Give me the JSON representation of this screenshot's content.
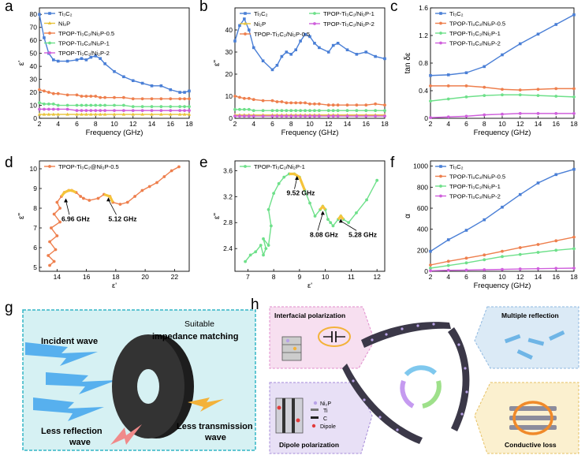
{
  "panels": {
    "a": "a",
    "b": "b",
    "c": "c",
    "d": "d",
    "e": "e",
    "f": "f",
    "g": "g",
    "h": "h"
  },
  "schematic_g": {
    "incident": "Incident wave",
    "suitable": "Suitable",
    "impedance": "impedance matching",
    "less_reflection_1": "Less reflection",
    "less_reflection_2": "wave",
    "less_transmission_1": "Less transmission",
    "less_transmission_2": "wave",
    "colors": {
      "background": "#d6f1f3",
      "border": "#34b6c6",
      "wave": "#57b0ee",
      "ring": "#2b2b2b",
      "reflect": "#f08a8a",
      "transmit": "#f3b23a"
    }
  },
  "schematic_h": {
    "interfacial": "Interfacial polarization",
    "multiple": "Multiple reflection",
    "dipole": "Dipole polarization",
    "conductive": "Conductive loss",
    "legend_ni2p": "Ni₂P",
    "legend_ti": "Ti",
    "legend_c": "C",
    "legend_dipole": "Dipole",
    "colors": {
      "pink": "#f7dff0",
      "blue": "#dbeaf6",
      "lavender": "#e8e0f6",
      "yellow": "#fbf0cf",
      "flake": "#3b3848",
      "dots": "#b9a3e8"
    }
  },
  "chart_data": [
    {
      "id": "a",
      "type": "line",
      "xlabel": "Frequency (GHz)",
      "ylabel": "ε'",
      "xlim": [
        2,
        18
      ],
      "ylim": [
        0,
        85
      ],
      "xticks": [
        2,
        4,
        6,
        8,
        10,
        12,
        14,
        16,
        18
      ],
      "yticks": [
        0,
        10,
        20,
        30,
        40,
        50,
        60,
        70,
        80
      ],
      "x": [
        2,
        2.5,
        3,
        3.5,
        4,
        5,
        6,
        6.5,
        7,
        7.5,
        8,
        8.5,
        9,
        10,
        11,
        12,
        13,
        14,
        15,
        16,
        17,
        17.5,
        18
      ],
      "series": [
        {
          "name": "Ti₃C₂",
          "color": "#4a7fd6",
          "marker": "square",
          "values": [
            80,
            62,
            50,
            45,
            44,
            44,
            45,
            46,
            45,
            47,
            48,
            46,
            42,
            36,
            32,
            29,
            27,
            25,
            25,
            22,
            20,
            20,
            21
          ]
        },
        {
          "name": "Ni₂P",
          "color": "#e8c237",
          "marker": "triangle",
          "values": [
            3,
            3,
            3,
            3,
            3,
            3,
            3,
            3,
            3,
            3,
            3,
            3,
            3,
            3,
            3,
            3,
            3,
            3,
            3,
            3,
            3,
            3,
            3
          ]
        },
        {
          "name": "TPOP-Ti₃C₂/Ni₂P-0.5",
          "color": "#ee7f4d",
          "marker": "circle",
          "values": [
            22,
            21,
            20,
            19,
            19,
            18,
            18,
            17,
            17,
            17,
            17,
            16,
            16,
            16,
            16,
            15,
            15,
            15,
            15,
            15,
            15,
            15,
            15
          ]
        },
        {
          "name": "TPOP-Ti₃C₂/Ni₂P-1",
          "color": "#6ee08a",
          "marker": "circle",
          "values": [
            12,
            11,
            11,
            11,
            10,
            10,
            10,
            10,
            10,
            10,
            10,
            10,
            10,
            10,
            10,
            9,
            9,
            9,
            9,
            9,
            9,
            9,
            9
          ]
        },
        {
          "name": "TPOP-Ti₃C₂/Ni₂P-2",
          "color": "#cf5fdc",
          "marker": "circle",
          "values": [
            7,
            7,
            7,
            7,
            7,
            7,
            6,
            6,
            6,
            6,
            6,
            6,
            6,
            6,
            6,
            6,
            6,
            6,
            6,
            6,
            6,
            6,
            6
          ]
        }
      ]
    },
    {
      "id": "b",
      "type": "line",
      "xlabel": "Frequency (GHz)",
      "ylabel": "ε\"",
      "xlim": [
        2,
        18
      ],
      "ylim": [
        0,
        50
      ],
      "xticks": [
        2,
        4,
        6,
        8,
        10,
        12,
        14,
        16,
        18
      ],
      "yticks": [
        0,
        10,
        20,
        30,
        40
      ],
      "x": [
        2,
        2.5,
        3,
        3.5,
        4,
        5,
        6,
        6.5,
        7,
        7.5,
        8,
        8.5,
        9,
        9.5,
        10,
        10.5,
        11,
        12,
        12.5,
        13,
        14,
        15,
        16,
        17,
        18
      ],
      "series": [
        {
          "name": "Ti₃C₂",
          "color": "#4a7fd6",
          "marker": "square",
          "values": [
            35,
            42,
            45,
            40,
            32,
            26,
            22,
            24,
            28,
            30,
            29,
            31,
            35,
            38,
            37,
            34,
            32,
            30,
            33,
            34,
            31,
            29,
            30,
            28,
            27
          ]
        },
        {
          "name": "Ni₂P",
          "color": "#e8c237",
          "marker": "triangle",
          "values": [
            1.5,
            1.5,
            1.5,
            1.5,
            1.5,
            1.5,
            1.5,
            1.5,
            1.5,
            1.5,
            1.5,
            1.5,
            1.5,
            1.5,
            1.5,
            1.5,
            1.5,
            1.5,
            1.5,
            1.5,
            1.5,
            1.5,
            1.5,
            1.5,
            1.5
          ]
        },
        {
          "name": "TPOP-Ti₃C₂/Ni₂P-0.5",
          "color": "#ee7f4d",
          "marker": "circle",
          "values": [
            10,
            9.5,
            9,
            9,
            8.5,
            8,
            8,
            7.5,
            7.5,
            7,
            7,
            7,
            7,
            7,
            6.5,
            6.5,
            6.5,
            6,
            6,
            6,
            6,
            6,
            6,
            6.5,
            6
          ]
        },
        {
          "name": "TPOP-Ti₃C₂/Ni₂P-1",
          "color": "#6ee08a",
          "marker": "circle",
          "values": [
            4,
            4,
            4,
            4,
            3.5,
            3.5,
            3.5,
            3.5,
            3.5,
            3.5,
            3.5,
            3.5,
            3.5,
            3.5,
            3.5,
            3.5,
            3.5,
            3.5,
            3.5,
            3.5,
            3.5,
            3.5,
            3.5,
            3.5,
            3.5
          ]
        },
        {
          "name": "TPOP-Ti₃C₂/Ni₂P-2",
          "color": "#cf5fdc",
          "marker": "circle",
          "values": [
            1,
            1,
            1,
            1,
            1,
            1,
            1,
            1,
            1,
            1,
            1,
            1,
            1,
            1,
            1,
            1,
            1,
            1,
            1,
            1,
            1,
            1,
            1,
            1,
            1
          ]
        }
      ]
    },
    {
      "id": "c",
      "type": "line",
      "xlabel": "Frequency (GHz)",
      "ylabel": "tan δε",
      "xlim": [
        2,
        18
      ],
      "ylim": [
        0,
        1.6
      ],
      "xticks": [
        2,
        4,
        6,
        8,
        10,
        12,
        14,
        16,
        18
      ],
      "yticks": [
        0.0,
        0.4,
        0.8,
        1.2,
        1.6
      ],
      "x": [
        2,
        4,
        6,
        8,
        10,
        12,
        14,
        16,
        18
      ],
      "series": [
        {
          "name": "Ti₃C₂",
          "color": "#4a7fd6",
          "marker": "square",
          "values": [
            0.62,
            0.63,
            0.66,
            0.75,
            0.92,
            1.08,
            1.22,
            1.36,
            1.5
          ]
        },
        {
          "name": "TPOP-Ti₃C₂/Ni₂P-0.5",
          "color": "#ee7f4d",
          "marker": "circle",
          "values": [
            0.47,
            0.47,
            0.47,
            0.45,
            0.42,
            0.41,
            0.42,
            0.43,
            0.43
          ]
        },
        {
          "name": "TPOP-Ti₃C₂/Ni₂P-1",
          "color": "#6ee08a",
          "marker": "circle",
          "values": [
            0.25,
            0.28,
            0.31,
            0.33,
            0.34,
            0.34,
            0.33,
            0.32,
            0.31
          ]
        },
        {
          "name": "TPOP-Ti₃C₂/Ni₂P-2",
          "color": "#cf5fdc",
          "marker": "circle",
          "values": [
            0.01,
            0.02,
            0.03,
            0.05,
            0.06,
            0.07,
            0.07,
            0.07,
            0.07
          ]
        }
      ]
    },
    {
      "id": "d",
      "type": "line",
      "title": "",
      "xlabel": "ε'",
      "ylabel": "ε\"",
      "xlim": [
        12.8,
        23
      ],
      "ylim": [
        4.8,
        10.4
      ],
      "xticks": [
        14,
        16,
        18,
        20,
        22
      ],
      "yticks": [
        5,
        6,
        7,
        8,
        9,
        10
      ],
      "series": [
        {
          "name": "TPOP-Ti₃C₂@Ni₂P-0.5",
          "color": "#ee7f4d",
          "marker": "circle",
          "x": [
            13.5,
            13.8,
            13.4,
            13.9,
            13.5,
            14.0,
            13.6,
            14.2,
            13.8,
            14.2,
            14.0,
            14.3,
            14.5,
            14.8,
            15.0,
            15.3,
            15.6,
            15.8,
            16.2,
            16.8,
            17.2,
            17.6,
            17.8,
            18.3,
            18.8,
            19.3,
            19.8,
            20.3,
            20.8,
            21.3,
            21.8,
            22.3
          ],
          "y": [
            5.1,
            5.3,
            5.6,
            5.9,
            6.3,
            6.6,
            7.0,
            7.3,
            7.7,
            8.0,
            8.3,
            8.6,
            8.8,
            8.9,
            8.9,
            8.8,
            8.6,
            8.5,
            8.4,
            8.5,
            8.7,
            8.6,
            8.3,
            8.2,
            8.3,
            8.6,
            8.9,
            9.1,
            9.3,
            9.6,
            9.9,
            10.1
          ]
        },
        {
          "name": "",
          "color": "#f5c43a",
          "marker": "none",
          "x": [
            14.3,
            14.5,
            14.8,
            15.0,
            15.3
          ],
          "y": [
            8.6,
            8.8,
            8.9,
            8.9,
            8.8
          ]
        },
        {
          "name": "",
          "color": "#f5c43a",
          "marker": "none",
          "x": [
            17.2,
            17.6,
            17.8
          ],
          "y": [
            8.7,
            8.6,
            8.3
          ]
        }
      ],
      "annotations": [
        {
          "text": "6.96 GHz",
          "x": 14.3,
          "y": 7.35,
          "point_x": 14.6,
          "point_y": 8.5
        },
        {
          "text": "5.12 GHz",
          "x": 17.5,
          "y": 7.35,
          "point_x": 17.5,
          "point_y": 8.55
        }
      ]
    },
    {
      "id": "e",
      "type": "line",
      "xlabel": "ε'",
      "ylabel": "ε\"",
      "xlim": [
        6.5,
        12.3
      ],
      "ylim": [
        2.05,
        3.75
      ],
      "xticks": [
        7,
        8,
        9,
        10,
        11,
        12
      ],
      "yticks": [
        2.4,
        2.8,
        3.2,
        3.6
      ],
      "series": [
        {
          "name": "TPOP-Ti₃C₂/Ni₂P-1",
          "color": "#6ee08a",
          "marker": "circle",
          "x": [
            6.9,
            7.1,
            7.3,
            7.5,
            7.6,
            7.7,
            7.6,
            7.8,
            7.9,
            7.8,
            8.0,
            8.2,
            8.4,
            8.6,
            8.8,
            9.0,
            9.2,
            9.4,
            9.6,
            9.8,
            9.9,
            10.0,
            10.1,
            10.2,
            10.3,
            10.5,
            10.6,
            10.7,
            10.9,
            11.2,
            11.6,
            12.0
          ],
          "y": [
            2.2,
            2.3,
            2.35,
            2.45,
            2.3,
            2.4,
            2.55,
            2.45,
            2.75,
            3.0,
            3.25,
            3.4,
            3.5,
            3.55,
            3.55,
            3.5,
            3.3,
            3.1,
            2.9,
            3.0,
            3.05,
            3.0,
            2.85,
            2.8,
            2.75,
            2.85,
            2.9,
            2.85,
            2.8,
            2.95,
            3.15,
            3.45
          ]
        },
        {
          "name": "",
          "color": "#f5c43a",
          "marker": "none",
          "x": [
            8.6,
            8.8,
            9.0,
            9.2
          ],
          "y": [
            3.55,
            3.55,
            3.5,
            3.3
          ]
        },
        {
          "name": "",
          "color": "#f5c43a",
          "marker": "none",
          "x": [
            9.8,
            9.9,
            10.0
          ],
          "y": [
            3.0,
            3.05,
            3.0
          ]
        },
        {
          "name": "",
          "color": "#f5c43a",
          "marker": "none",
          "x": [
            10.5,
            10.6,
            10.7
          ],
          "y": [
            2.85,
            2.9,
            2.85
          ]
        }
      ],
      "annotations": [
        {
          "text": "9.52 GHz",
          "x": 8.5,
          "y": 3.22,
          "point_x": 8.9,
          "point_y": 3.52
        },
        {
          "text": "8.08 GHz",
          "x": 9.4,
          "y": 2.58,
          "point_x": 9.9,
          "point_y": 2.98
        },
        {
          "text": "5.28 GHz",
          "x": 10.9,
          "y": 2.58,
          "point_x": 10.6,
          "point_y": 2.86
        }
      ]
    },
    {
      "id": "f",
      "type": "line",
      "xlabel": "Frequency (GHz)",
      "ylabel": "α",
      "xlim": [
        2,
        18
      ],
      "ylim": [
        0,
        1050
      ],
      "xticks": [
        2,
        4,
        6,
        8,
        10,
        12,
        14,
        16,
        18
      ],
      "yticks": [
        0,
        200,
        400,
        600,
        800,
        1000
      ],
      "x": [
        2,
        4,
        6,
        8,
        10,
        12,
        14,
        16,
        18
      ],
      "series": [
        {
          "name": "Ti₃C₂",
          "color": "#4a7fd6",
          "marker": "square",
          "values": [
            190,
            300,
            390,
            490,
            610,
            730,
            840,
            920,
            970
          ]
        },
        {
          "name": "TPOP-Ti₃C₂/Ni₂P-0.5",
          "color": "#ee7f4d",
          "marker": "circle",
          "values": [
            60,
            95,
            125,
            155,
            190,
            225,
            255,
            290,
            325
          ]
        },
        {
          "name": "TPOP-Ti₃C₂/Ni₂P-1",
          "color": "#6ee08a",
          "marker": "circle",
          "values": [
            30,
            55,
            80,
            110,
            140,
            160,
            180,
            200,
            215
          ]
        },
        {
          "name": "TPOP-Ti₃C₂/Ni₂P-2",
          "color": "#cf5fdc",
          "marker": "circle",
          "values": [
            5,
            10,
            12,
            15,
            18,
            22,
            25,
            28,
            30
          ]
        }
      ]
    }
  ]
}
